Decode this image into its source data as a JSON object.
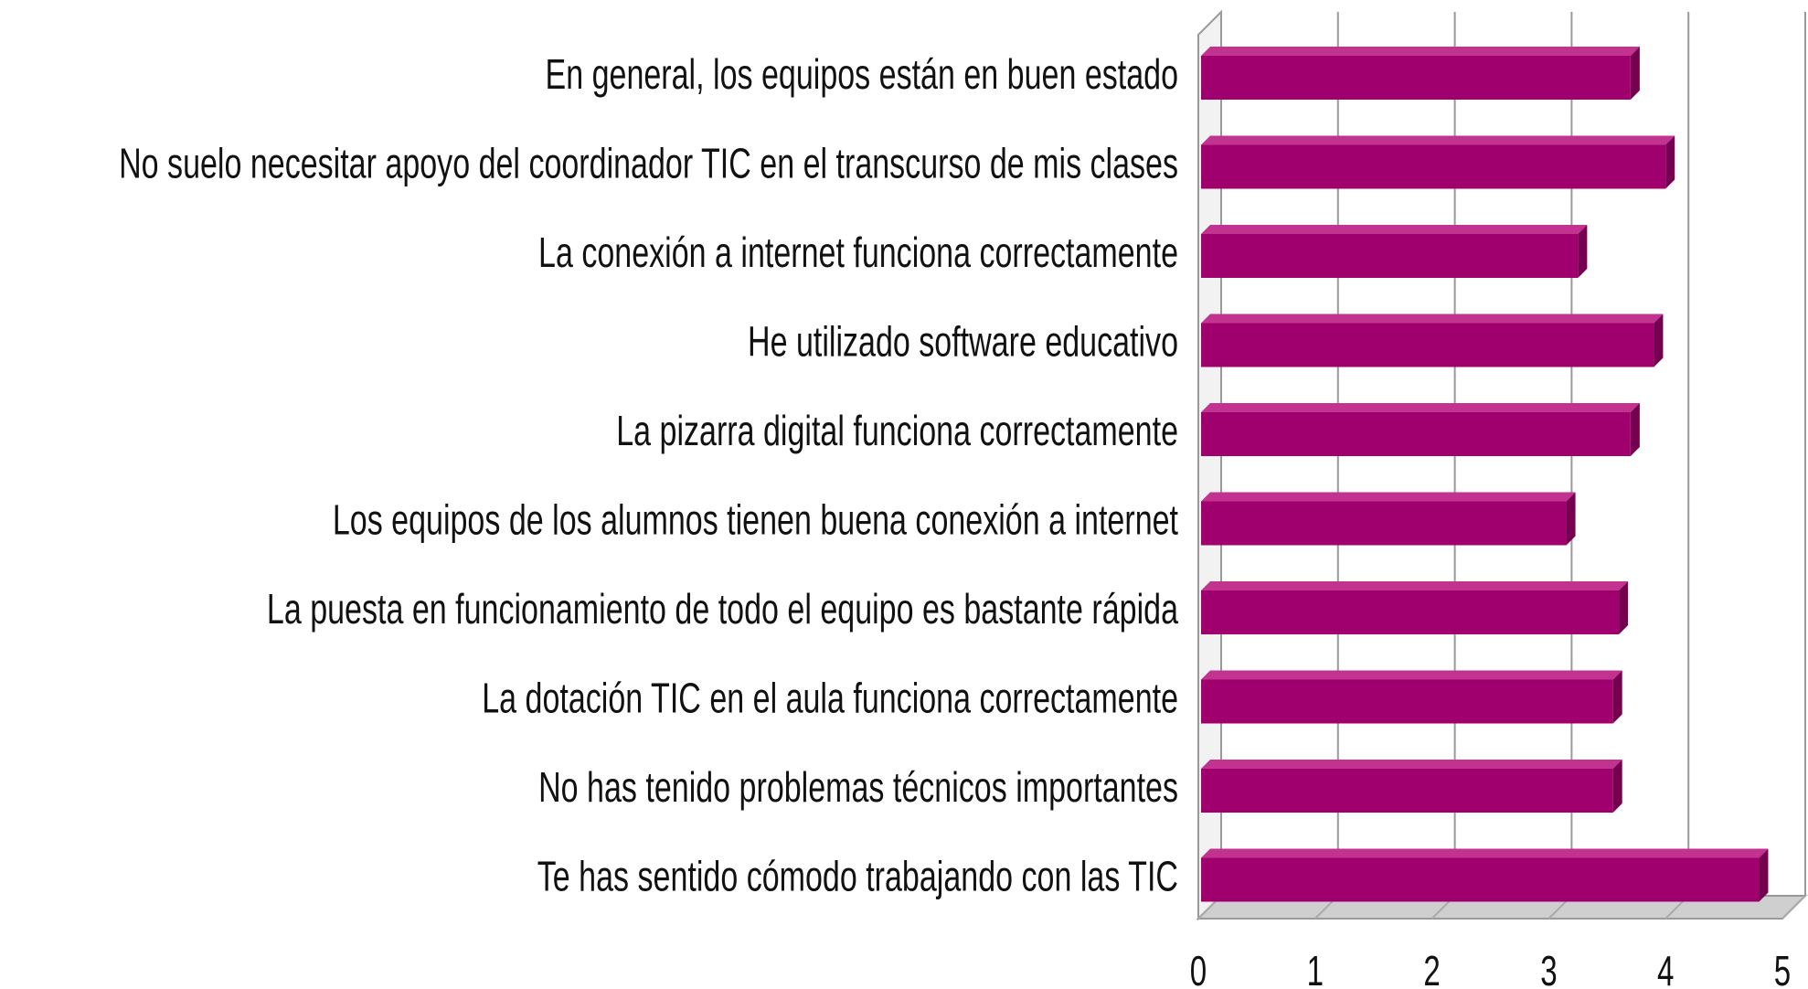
{
  "chart_data": {
    "type": "bar",
    "orientation": "horizontal",
    "categories": [
      "En general, los equipos están en buen estado",
      "No suelo necesitar apoyo del coordinador TIC en el transcurso de mis clases",
      "La conexión a internet funciona correctamente",
      "He utilizado software educativo",
      "La pizarra digital funciona correctamente",
      "Los equipos de los alumnos tienen buena conexión a internet",
      "La puesta en funcionamiento de todo el equipo es bastante rápida",
      "La dotación TIC en el aula funciona correctamente",
      "No has tenido problemas técnicos importantes",
      "Te has sentido cómodo trabajando con las TIC"
    ],
    "values": [
      3.7,
      4.0,
      3.25,
      3.9,
      3.7,
      3.15,
      3.6,
      3.55,
      3.55,
      4.8
    ],
    "color": "#a0006e",
    "xlim": [
      0,
      5
    ],
    "xticks": [
      0,
      1,
      2,
      3,
      4,
      5
    ],
    "grid": true
  }
}
